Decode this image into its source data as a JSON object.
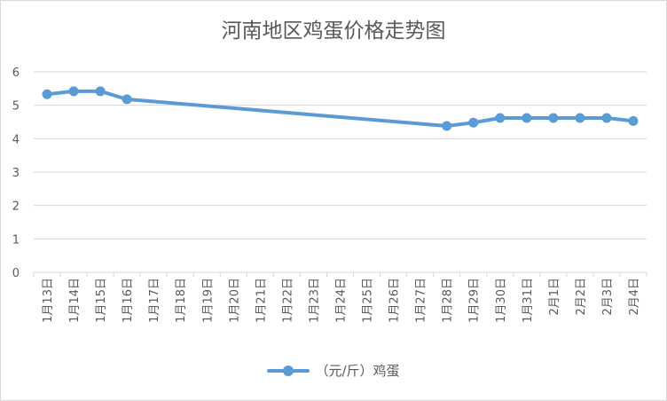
{
  "colors": {
    "series": "#5b9bd5",
    "grid": "#d9d9d9",
    "text": "#595959"
  },
  "chart_data": {
    "type": "line",
    "title": "河南地区鸡蛋价格走势图",
    "categories": [
      "1月13日",
      "1月14日",
      "1月15日",
      "1月16日",
      "1月17日",
      "1月18日",
      "1月19日",
      "1月20日",
      "1月21日",
      "1月22日",
      "1月23日",
      "1月24日",
      "1月25日",
      "1月26日",
      "1月27日",
      "1月28日",
      "1月29日",
      "1月30日",
      "1月31日",
      "2月1日",
      "2月2日",
      "2月3日",
      "2月4日"
    ],
    "series": [
      {
        "name": "（元/斤）鸡蛋",
        "values": [
          5.33,
          5.42,
          5.42,
          5.18,
          null,
          null,
          null,
          null,
          null,
          null,
          null,
          null,
          null,
          null,
          null,
          4.38,
          4.48,
          4.62,
          4.62,
          4.62,
          4.62,
          4.62,
          4.53
        ]
      }
    ],
    "ylim": [
      0,
      6
    ],
    "yticks": [
      "0",
      "1",
      "2",
      "3",
      "4",
      "5",
      "6"
    ],
    "grid": true,
    "legend_position": "bottom"
  }
}
